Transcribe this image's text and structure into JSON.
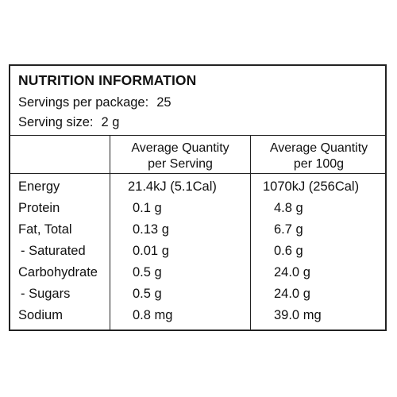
{
  "panel": {
    "title": "NUTRITION INFORMATION",
    "servings_per_package_label": "Servings per package:",
    "servings_per_package_value": "25",
    "serving_size_label": "Serving size:",
    "serving_size_value": "2 g"
  },
  "columns": {
    "per_serving": {
      "line1": "Average Quantity",
      "line2": "per Serving"
    },
    "per_100g": {
      "line1": "Average Quantity",
      "line2": "per 100g"
    }
  },
  "rows": [
    {
      "name": "Energy",
      "per_serving": "21.4kJ (5.1Cal)",
      "per_100g": "1070kJ (256Cal)"
    },
    {
      "name": "Protein",
      "per_serving": "0.1 g",
      "per_100g": "4.8 g"
    },
    {
      "name": "Fat, Total",
      "per_serving": "0.13 g",
      "per_100g": "6.7 g"
    },
    {
      "name": "- Saturated",
      "per_serving": "0.01 g",
      "per_100g": "0.6 g"
    },
    {
      "name": "Carbohydrate",
      "per_serving": "0.5 g",
      "per_100g": "24.0 g"
    },
    {
      "name": "- Sugars",
      "per_serving": "0.5 g",
      "per_100g": "24.0 g"
    },
    {
      "name": "Sodium",
      "per_serving": "0.8 mg",
      "per_100g": "39.0 mg"
    }
  ]
}
